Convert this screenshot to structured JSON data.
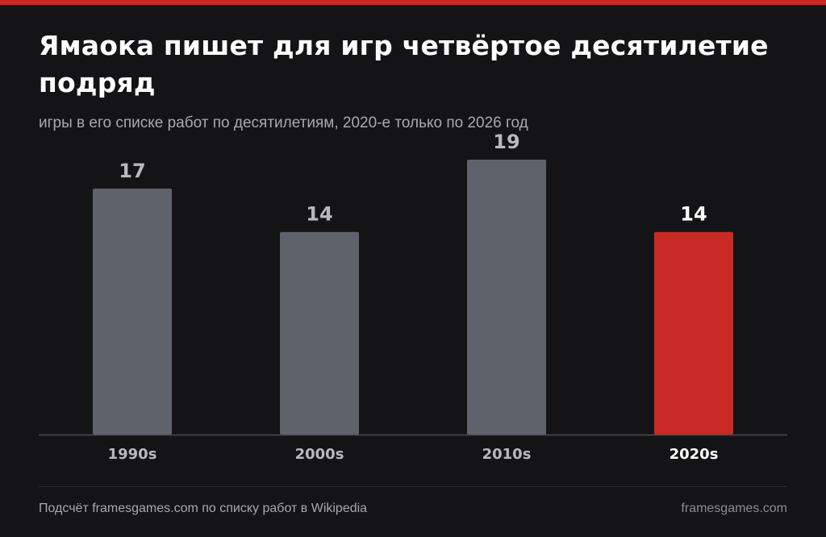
{
  "colors": {
    "background": "#141416",
    "accent": "#c92a25",
    "bar_default": "#5e636b",
    "value_label_default": "#b8b9bd",
    "value_label_highlight": "#ffffff",
    "category_label_default": "#b8b9bd",
    "category_label_highlight": "#ffffff",
    "axis": "#4a4b50"
  },
  "footer": {
    "source": "Подсчёт framesgames.com по списку работ в Wikipedia",
    "site": "framesgames.com"
  },
  "chart_data": {
    "type": "bar",
    "title": "Ямаока пишет для игр четвёртое десятилетие подряд",
    "subtitle": "игры в его списке работ по десятилетиям, 2020-е только по 2026 год",
    "categories": [
      "1990s",
      "2000s",
      "2010s",
      "2020s"
    ],
    "values": [
      17,
      14,
      19,
      14
    ],
    "highlight_index": 3,
    "ylim": [
      0,
      19
    ],
    "grid": false,
    "legend": "none",
    "xlabel": "",
    "ylabel": ""
  }
}
